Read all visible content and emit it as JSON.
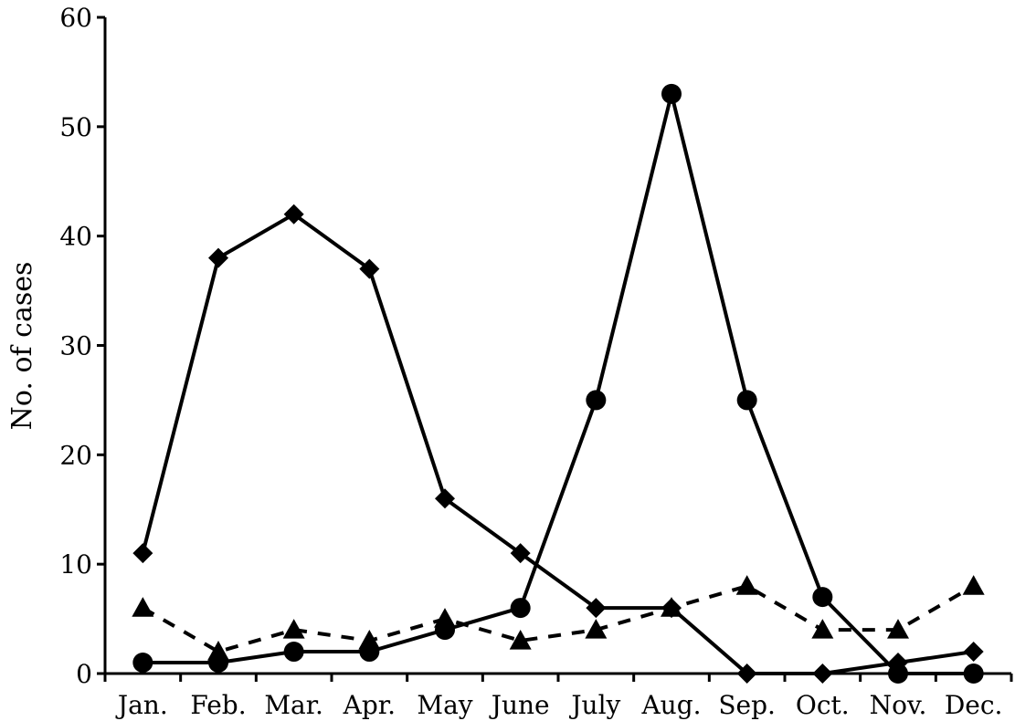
{
  "chart_data": {
    "type": "line",
    "title": "",
    "xlabel": "",
    "ylabel": "No. of cases",
    "ylim": [
      0,
      60
    ],
    "yticks": [
      0,
      10,
      20,
      30,
      40,
      50,
      60
    ],
    "categories": [
      "Jan.",
      "Feb.",
      "Mar.",
      "Apr.",
      "May",
      "June",
      "July",
      "Aug.",
      "Sep.",
      "Oct.",
      "Nov.",
      "Dec."
    ],
    "grid": false,
    "legend": "none",
    "series": [
      {
        "marker": "diamond",
        "line": "solid",
        "color": "#000000",
        "values": [
          11,
          38,
          42,
          37,
          16,
          11,
          6,
          6,
          0,
          0,
          1,
          2
        ]
      },
      {
        "marker": "circle",
        "line": "solid",
        "color": "#000000",
        "values": [
          1,
          1,
          2,
          2,
          4,
          6,
          25,
          53,
          25,
          7,
          0,
          0
        ]
      },
      {
        "marker": "triangle",
        "line": "dashed",
        "color": "#000000",
        "values": [
          6,
          2,
          4,
          3,
          5,
          3,
          4,
          6,
          8,
          4,
          4,
          8
        ]
      }
    ]
  }
}
